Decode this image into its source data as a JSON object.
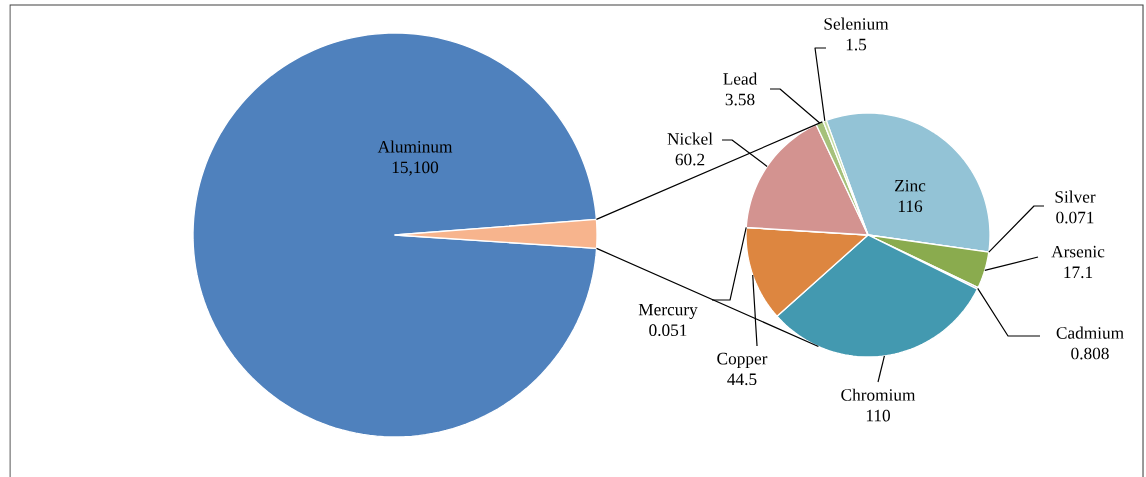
{
  "chart_data": [
    {
      "type": "pie",
      "categories": [
        "Aluminum",
        null
      ],
      "values": [
        15100,
        354
      ],
      "colors": [
        "#4f81bd",
        "#f7b48d"
      ],
      "value_labels": [
        "15,100",
        null
      ]
    },
    {
      "type": "pie",
      "categories": [
        "Zinc",
        "Silver",
        "Arsenic",
        "Cadmium",
        "Chromium",
        "Copper",
        "Mercury",
        "Nickel",
        "Lead",
        "Selenium"
      ],
      "values": [
        116,
        0.071,
        17.1,
        0.808,
        110,
        44.5,
        0.051,
        60.2,
        3.58,
        1.5
      ],
      "colors": [
        "#93c3d6",
        "#c0504d",
        "#8aab4e",
        "#8064a2",
        "#4399b0",
        "#dd8640",
        "#4bacc6",
        "#d39390",
        "#a6c17b",
        "#c5dba0"
      ],
      "data_labels": true
    }
  ]
}
